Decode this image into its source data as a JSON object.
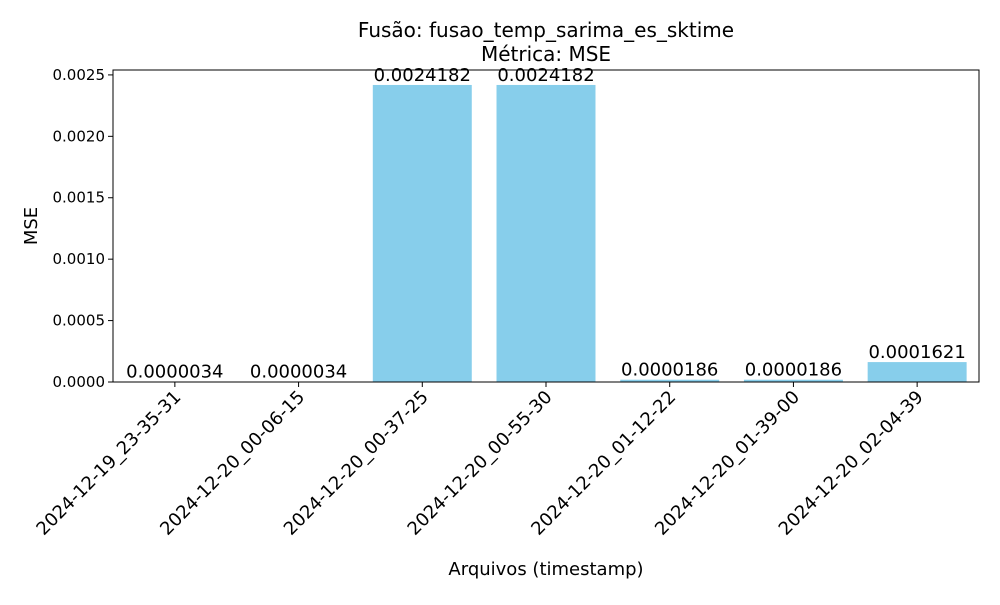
{
  "chart_data": {
    "type": "bar",
    "title": [
      "Fusão: fusao_temp_sarima_es_sktime",
      "Métrica: MSE"
    ],
    "xlabel": "Arquivos (timestamp)",
    "ylabel": "MSE",
    "categories": [
      "2024-12-19_23-35-31",
      "2024-12-20_00-06-15",
      "2024-12-20_00-37-25",
      "2024-12-20_00-55-30",
      "2024-12-20_01-12-22",
      "2024-12-20_01-39-00",
      "2024-12-20_02-04-39"
    ],
    "values": [
      3.4e-06,
      3.4e-06,
      0.0024182,
      0.0024182,
      1.86e-05,
      1.86e-05,
      0.0001621
    ],
    "value_labels": [
      "0.0000034",
      "0.0000034",
      "0.0024182",
      "0.0024182",
      "0.0000186",
      "0.0000186",
      "0.0001621"
    ],
    "ylim": [
      0,
      0.00254
    ],
    "yticks": [
      0,
      0.0005,
      0.001,
      0.0015,
      0.002,
      0.0025
    ],
    "ytick_labels": [
      "0.0000",
      "0.0005",
      "0.0010",
      "0.0015",
      "0.0020",
      "0.0025"
    ],
    "grid": false,
    "colors": {
      "bar": "#87ceeb",
      "axis": "#000000"
    }
  }
}
